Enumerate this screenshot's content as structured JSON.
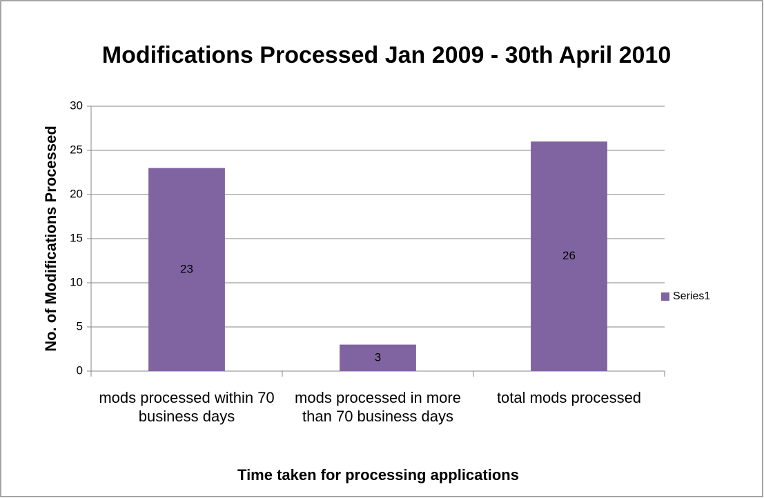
{
  "chart_data": {
    "type": "bar",
    "title": "Modifications Processed Jan 2009 - 30th April 2010",
    "x_label": "Time taken for processing applications",
    "y_label": "No. of Modifications Processed",
    "categories": [
      "mods processed within 70 business days",
      "mods processed in more than 70 business days",
      "total mods processed"
    ],
    "series": [
      {
        "name": "Series1",
        "color": "#8064a2",
        "values": [
          23,
          3,
          26
        ]
      }
    ],
    "ylim": [
      0,
      30
    ],
    "yticks": [
      0,
      5,
      10,
      15,
      20,
      25,
      30
    ],
    "grid": true,
    "legend": "right"
  }
}
